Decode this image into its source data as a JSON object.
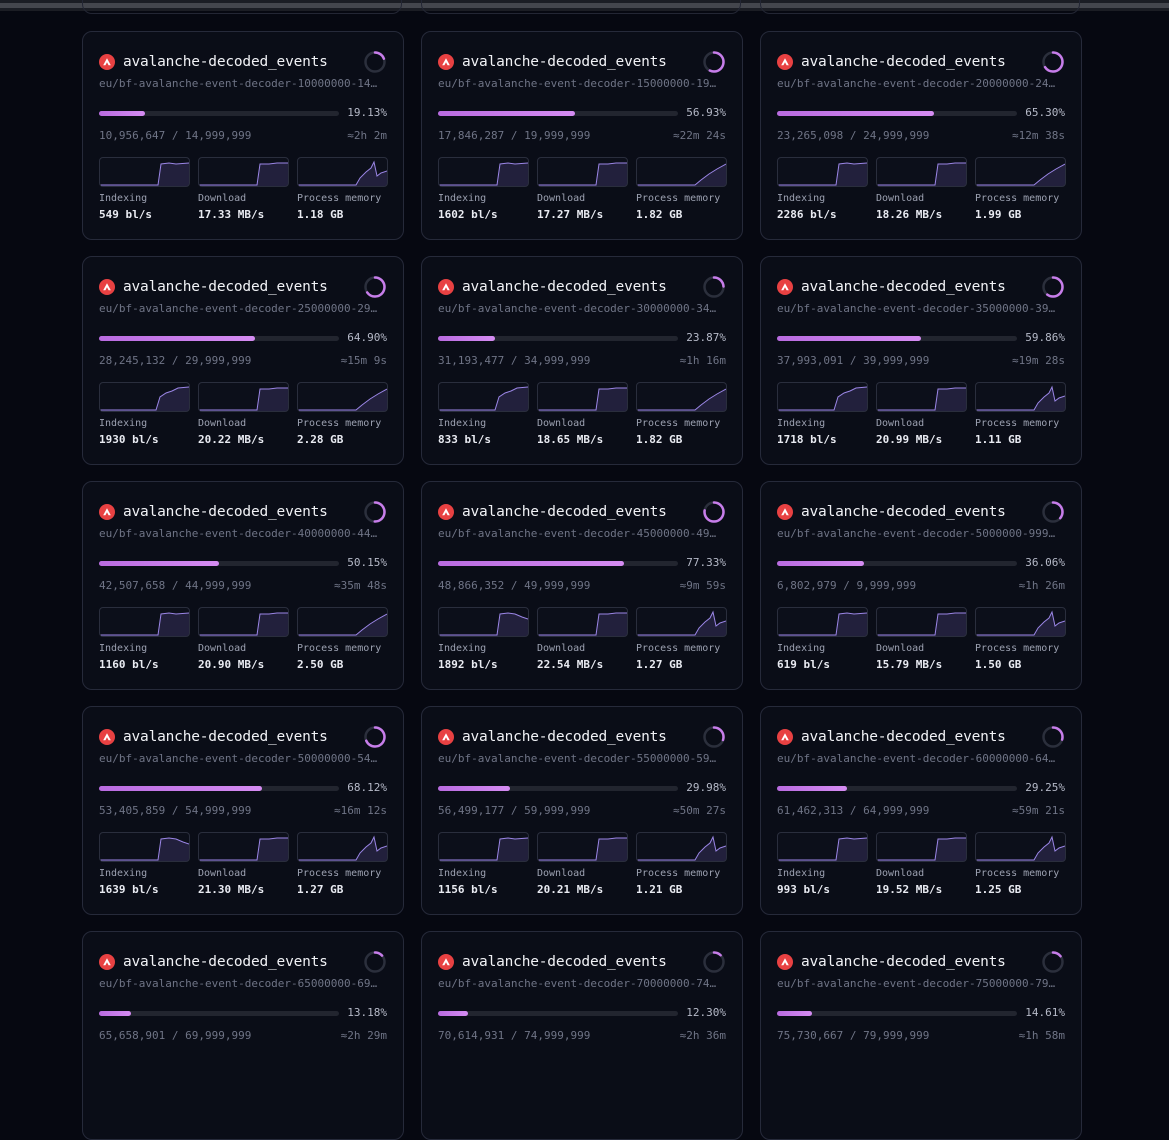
{
  "colors": {
    "accent": "#c77dea",
    "logo": "#e84142",
    "background": "#060811"
  },
  "cards": [
    {
      "title": "avalanche-decoded_events",
      "subtitle": "eu/bf-avalanche-event-decoder-10000000-14…",
      "progress_pct": "19.13%",
      "progress": 0.1913,
      "count": "10,956,647 / 14,999,999",
      "eta": "≈2h 2m",
      "metrics": [
        {
          "label": "Indexing",
          "value": "549 bl/s",
          "shape": "idx"
        },
        {
          "label": "Download",
          "value": "17.33 MB/s",
          "shape": "dl"
        },
        {
          "label": "Process memory",
          "value": "1.18 GB",
          "shape": "mem-spike"
        }
      ]
    },
    {
      "title": "avalanche-decoded_events",
      "subtitle": "eu/bf-avalanche-event-decoder-15000000-19…",
      "progress_pct": "56.93%",
      "progress": 0.5693,
      "count": "17,846,287 / 19,999,999",
      "eta": "≈22m 24s",
      "metrics": [
        {
          "label": "Indexing",
          "value": "1602 bl/s",
          "shape": "idx"
        },
        {
          "label": "Download",
          "value": "17.27 MB/s",
          "shape": "dl"
        },
        {
          "label": "Process memory",
          "value": "1.82 GB",
          "shape": "mem-ramp"
        }
      ]
    },
    {
      "title": "avalanche-decoded_events",
      "subtitle": "eu/bf-avalanche-event-decoder-20000000-24…",
      "progress_pct": "65.30%",
      "progress": 0.653,
      "count": "23,265,098 / 24,999,999",
      "eta": "≈12m 38s",
      "metrics": [
        {
          "label": "Indexing",
          "value": "2286 bl/s",
          "shape": "idx"
        },
        {
          "label": "Download",
          "value": "18.26 MB/s",
          "shape": "dl"
        },
        {
          "label": "Process memory",
          "value": "1.99 GB",
          "shape": "mem-ramp"
        }
      ]
    },
    {
      "title": "avalanche-decoded_events",
      "subtitle": "eu/bf-avalanche-event-decoder-25000000-29…",
      "progress_pct": "64.90%",
      "progress": 0.649,
      "count": "28,245,132 / 29,999,999",
      "eta": "≈15m 9s",
      "metrics": [
        {
          "label": "Indexing",
          "value": "1930 bl/s",
          "shape": "idx-ramp"
        },
        {
          "label": "Download",
          "value": "20.22 MB/s",
          "shape": "dl"
        },
        {
          "label": "Process memory",
          "value": "2.28 GB",
          "shape": "mem-ramp"
        }
      ]
    },
    {
      "title": "avalanche-decoded_events",
      "subtitle": "eu/bf-avalanche-event-decoder-30000000-34…",
      "progress_pct": "23.87%",
      "progress": 0.2387,
      "count": "31,193,477 / 34,999,999",
      "eta": "≈1h 16m",
      "metrics": [
        {
          "label": "Indexing",
          "value": "833 bl/s",
          "shape": "idx-ramp"
        },
        {
          "label": "Download",
          "value": "18.65 MB/s",
          "shape": "dl"
        },
        {
          "label": "Process memory",
          "value": "1.82 GB",
          "shape": "mem-ramp"
        }
      ]
    },
    {
      "title": "avalanche-decoded_events",
      "subtitle": "eu/bf-avalanche-event-decoder-35000000-39…",
      "progress_pct": "59.86%",
      "progress": 0.5986,
      "count": "37,993,091 / 39,999,999",
      "eta": "≈19m 28s",
      "metrics": [
        {
          "label": "Indexing",
          "value": "1718 bl/s",
          "shape": "idx-ramp"
        },
        {
          "label": "Download",
          "value": "20.99 MB/s",
          "shape": "dl"
        },
        {
          "label": "Process memory",
          "value": "1.11 GB",
          "shape": "mem-spike"
        }
      ]
    },
    {
      "title": "avalanche-decoded_events",
      "subtitle": "eu/bf-avalanche-event-decoder-40000000-44…",
      "progress_pct": "50.15%",
      "progress": 0.5015,
      "count": "42,507,658 / 44,999,999",
      "eta": "≈35m 48s",
      "metrics": [
        {
          "label": "Indexing",
          "value": "1160 bl/s",
          "shape": "idx"
        },
        {
          "label": "Download",
          "value": "20.90 MB/s",
          "shape": "dl"
        },
        {
          "label": "Process memory",
          "value": "2.50 GB",
          "shape": "mem-ramp"
        }
      ]
    },
    {
      "title": "avalanche-decoded_events",
      "subtitle": "eu/bf-avalanche-event-decoder-45000000-49…",
      "progress_pct": "77.33%",
      "progress": 0.7733,
      "count": "48,866,352 / 49,999,999",
      "eta": "≈9m 59s",
      "metrics": [
        {
          "label": "Indexing",
          "value": "1892 bl/s",
          "shape": "idx-drop"
        },
        {
          "label": "Download",
          "value": "22.54 MB/s",
          "shape": "dl"
        },
        {
          "label": "Process memory",
          "value": "1.27 GB",
          "shape": "mem-spike"
        }
      ]
    },
    {
      "title": "avalanche-decoded_events",
      "subtitle": "eu/bf-avalanche-event-decoder-5000000-999…",
      "progress_pct": "36.06%",
      "progress": 0.3606,
      "count": "6,802,979 / 9,999,999",
      "eta": "≈1h 26m",
      "metrics": [
        {
          "label": "Indexing",
          "value": "619 bl/s",
          "shape": "idx"
        },
        {
          "label": "Download",
          "value": "15.79 MB/s",
          "shape": "dl"
        },
        {
          "label": "Process memory",
          "value": "1.50 GB",
          "shape": "mem-spike"
        }
      ]
    },
    {
      "title": "avalanche-decoded_events",
      "subtitle": "eu/bf-avalanche-event-decoder-50000000-54…",
      "progress_pct": "68.12%",
      "progress": 0.6812,
      "count": "53,405,859 / 54,999,999",
      "eta": "≈16m 12s",
      "metrics": [
        {
          "label": "Indexing",
          "value": "1639 bl/s",
          "shape": "idx-drop"
        },
        {
          "label": "Download",
          "value": "21.30 MB/s",
          "shape": "dl"
        },
        {
          "label": "Process memory",
          "value": "1.27 GB",
          "shape": "mem-spike"
        }
      ]
    },
    {
      "title": "avalanche-decoded_events",
      "subtitle": "eu/bf-avalanche-event-decoder-55000000-59…",
      "progress_pct": "29.98%",
      "progress": 0.2998,
      "count": "56,499,177 / 59,999,999",
      "eta": "≈50m 27s",
      "metrics": [
        {
          "label": "Indexing",
          "value": "1156 bl/s",
          "shape": "idx"
        },
        {
          "label": "Download",
          "value": "20.21 MB/s",
          "shape": "dl"
        },
        {
          "label": "Process memory",
          "value": "1.21 GB",
          "shape": "mem-spike"
        }
      ]
    },
    {
      "title": "avalanche-decoded_events",
      "subtitle": "eu/bf-avalanche-event-decoder-60000000-64…",
      "progress_pct": "29.25%",
      "progress": 0.2925,
      "count": "61,462,313 / 64,999,999",
      "eta": "≈59m 21s",
      "metrics": [
        {
          "label": "Indexing",
          "value": "993 bl/s",
          "shape": "idx"
        },
        {
          "label": "Download",
          "value": "19.52 MB/s",
          "shape": "dl"
        },
        {
          "label": "Process memory",
          "value": "1.25 GB",
          "shape": "mem-spike"
        }
      ]
    },
    {
      "title": "avalanche-decoded_events",
      "subtitle": "eu/bf-avalanche-event-decoder-65000000-69…",
      "progress_pct": "13.18%",
      "progress": 0.1318,
      "count": "65,658,901 / 69,999,999",
      "eta": "≈2h 29m",
      "metrics": []
    },
    {
      "title": "avalanche-decoded_events",
      "subtitle": "eu/bf-avalanche-event-decoder-70000000-74…",
      "progress_pct": "12.30%",
      "progress": 0.123,
      "count": "70,614,931 / 74,999,999",
      "eta": "≈2h 36m",
      "metrics": []
    },
    {
      "title": "avalanche-decoded_events",
      "subtitle": "eu/bf-avalanche-event-decoder-75000000-79…",
      "progress_pct": "14.61%",
      "progress": 0.1461,
      "count": "75,730,667 / 79,999,999",
      "eta": "≈1h 58m",
      "metrics": []
    }
  ]
}
